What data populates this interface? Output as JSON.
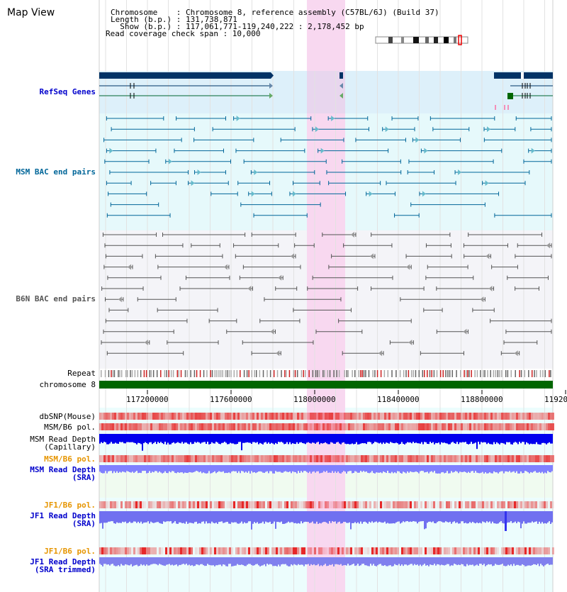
{
  "app": {
    "title": "Map View"
  },
  "info": {
    "line1_key": "Chromosome    ",
    "line1_val": ": Chromosome 8, reference assembly (C57BL/6J) (Build 37)",
    "line2_key": "Length (b.p.) ",
    "line2_val": ": 131,738,871",
    "line3_key": "  Show (b.p.) ",
    "line3_val": ": 117,061,771-119,240,222 : 2,178,452 bp",
    "line4": "Read coverage check span : 10,000"
  },
  "tracks": {
    "refseq": "RefSeq Genes",
    "msm_bac": "MSM BAC end pairs",
    "b6n_bac": "B6N BAC end pairs",
    "repeat": "Repeat",
    "chromosome": "chromosome 8",
    "dbsnp": "dbSNP(Mouse)",
    "msm_b6_pol": "MSM/B6 pol.",
    "msm_depth_cap_1": "MSM Read Depth",
    "msm_depth_cap_2": "(Capillary)",
    "msm_b6_pol_2": "MSM/B6 pol.",
    "msm_depth_sra_1": "MSM Read Depth",
    "msm_depth_sra_2": "(SRA)",
    "jf1_b6_pol": "JF1/B6 pol.",
    "jf1_depth_sra_1": "JF1 Read Depth",
    "jf1_depth_sra_2": "(SRA)",
    "jf1_b6_pol_2": "JF1/B6 pol.",
    "jf1_depth_trim_1": "JF1 Read Depth",
    "jf1_depth_trim_2": "(SRA trimmed)"
  },
  "axis": {
    "ticks": [
      "117200000",
      "117600000",
      "118000000",
      "118400000",
      "118800000",
      "11920"
    ]
  },
  "colors": {
    "refseq_label": "#0000cc",
    "msm_bac_label": "#006699",
    "b6n_bac_label": "#555555",
    "orange_label": "#e69500",
    "blue_label": "#0000cc",
    "highlight": "#f8d8f0",
    "chromosome": "#006600",
    "depth_blue": "#0000ee",
    "depth_light": "#8080ff"
  }
}
